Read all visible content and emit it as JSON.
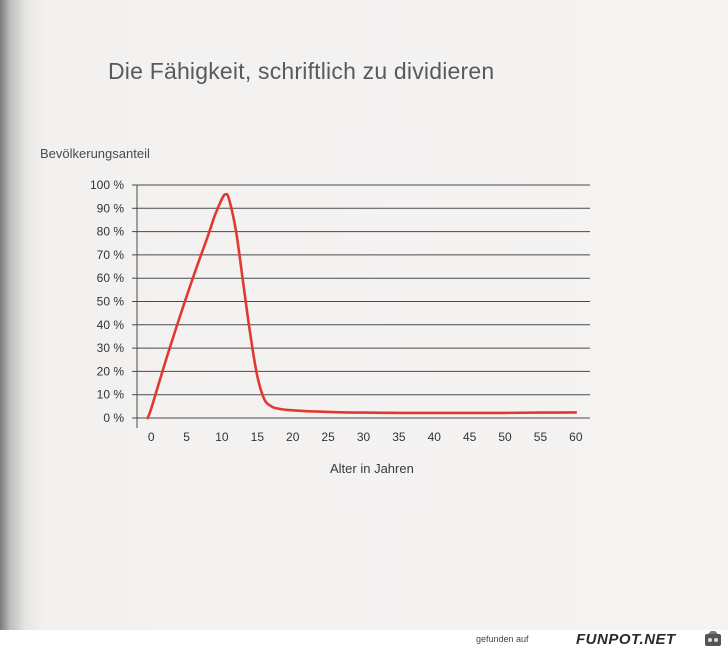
{
  "chart_data": {
    "type": "line",
    "title": "Die Fähigkeit, schriftlich zu dividieren",
    "ylabel": "Bevölkerungsanteil",
    "xlabel": "Alter in Jahren",
    "xlim": [
      -2,
      62
    ],
    "ylim": [
      0,
      100
    ],
    "xticks": [
      0,
      5,
      10,
      15,
      20,
      25,
      30,
      35,
      40,
      45,
      50,
      55,
      60
    ],
    "yticks": [
      0,
      10,
      20,
      30,
      40,
      50,
      60,
      70,
      80,
      90,
      100
    ],
    "ytick_labels": [
      "0 %",
      "10 %",
      "20 %",
      "30 %",
      "40 %",
      "50 %",
      "60 %",
      "70 %",
      "80 %",
      "90 %",
      "100 %"
    ],
    "grid": "horizontal",
    "series": [
      {
        "color": "#e03a2f",
        "x": [
          -0.5,
          0,
          2,
          4,
          6,
          8,
          9,
          10,
          10.5,
          11,
          12,
          13,
          14,
          15,
          16,
          17,
          18,
          20,
          25,
          30,
          35,
          40,
          45,
          50,
          55,
          60
        ],
        "y": [
          0,
          4,
          24,
          43,
          61,
          78,
          87,
          94,
          96,
          94,
          80,
          58,
          36,
          18,
          8,
          5,
          4,
          3.3,
          2.6,
          2.3,
          2.2,
          2.2,
          2.2,
          2.2,
          2.3,
          2.4
        ]
      }
    ]
  },
  "footer": {
    "found_on": "gefunden auf",
    "brand": "FUNPOT.NET"
  }
}
